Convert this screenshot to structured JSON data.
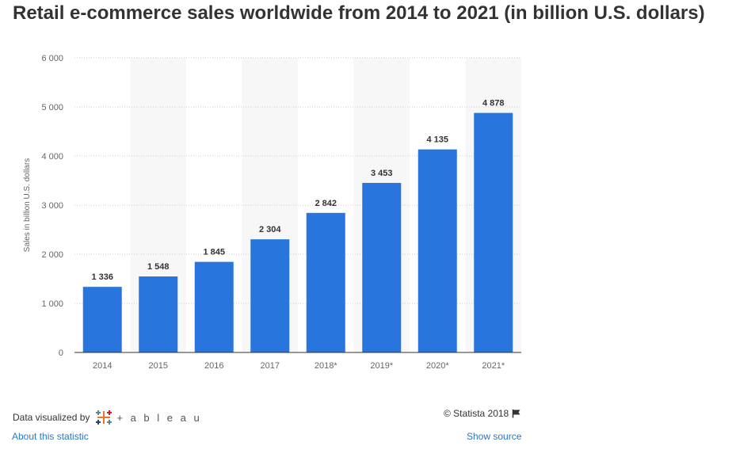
{
  "chart_data": {
    "type": "bar",
    "title": "Retail e-commerce sales worldwide from 2014 to 2021 (in billion U.S. dollars)",
    "categories": [
      "2014",
      "2015",
      "2016",
      "2017",
      "2018*",
      "2019*",
      "2020*",
      "2021*"
    ],
    "values": [
      1336,
      1548,
      1845,
      2304,
      2842,
      3453,
      4135,
      4878
    ],
    "value_labels": [
      "1 336",
      "1 548",
      "1 845",
      "2 304",
      "2 842",
      "3 453",
      "4 135",
      "4 878"
    ],
    "ylabel": "Sales in billion U.S. dollars",
    "xlabel": "",
    "ylim": [
      0,
      6000
    ],
    "yticks": [
      0,
      1000,
      2000,
      3000,
      4000,
      5000,
      6000
    ],
    "ytick_labels": [
      "0",
      "1 000",
      "2 000",
      "3 000",
      "4 000",
      "5 000",
      "6 000"
    ],
    "grid": true,
    "bar_color": "#2876dd",
    "band_color": "#f7f7f7"
  },
  "footer": {
    "visualized_by": "Data visualized by",
    "tableau_word": "+ a b l e a u",
    "copyright": "© Statista 2018",
    "flag_icon": "flag-icon",
    "about_link": "About this statistic",
    "source_link": "Show source"
  },
  "colors": {
    "title": "#333333",
    "link": "#2b77c6"
  }
}
